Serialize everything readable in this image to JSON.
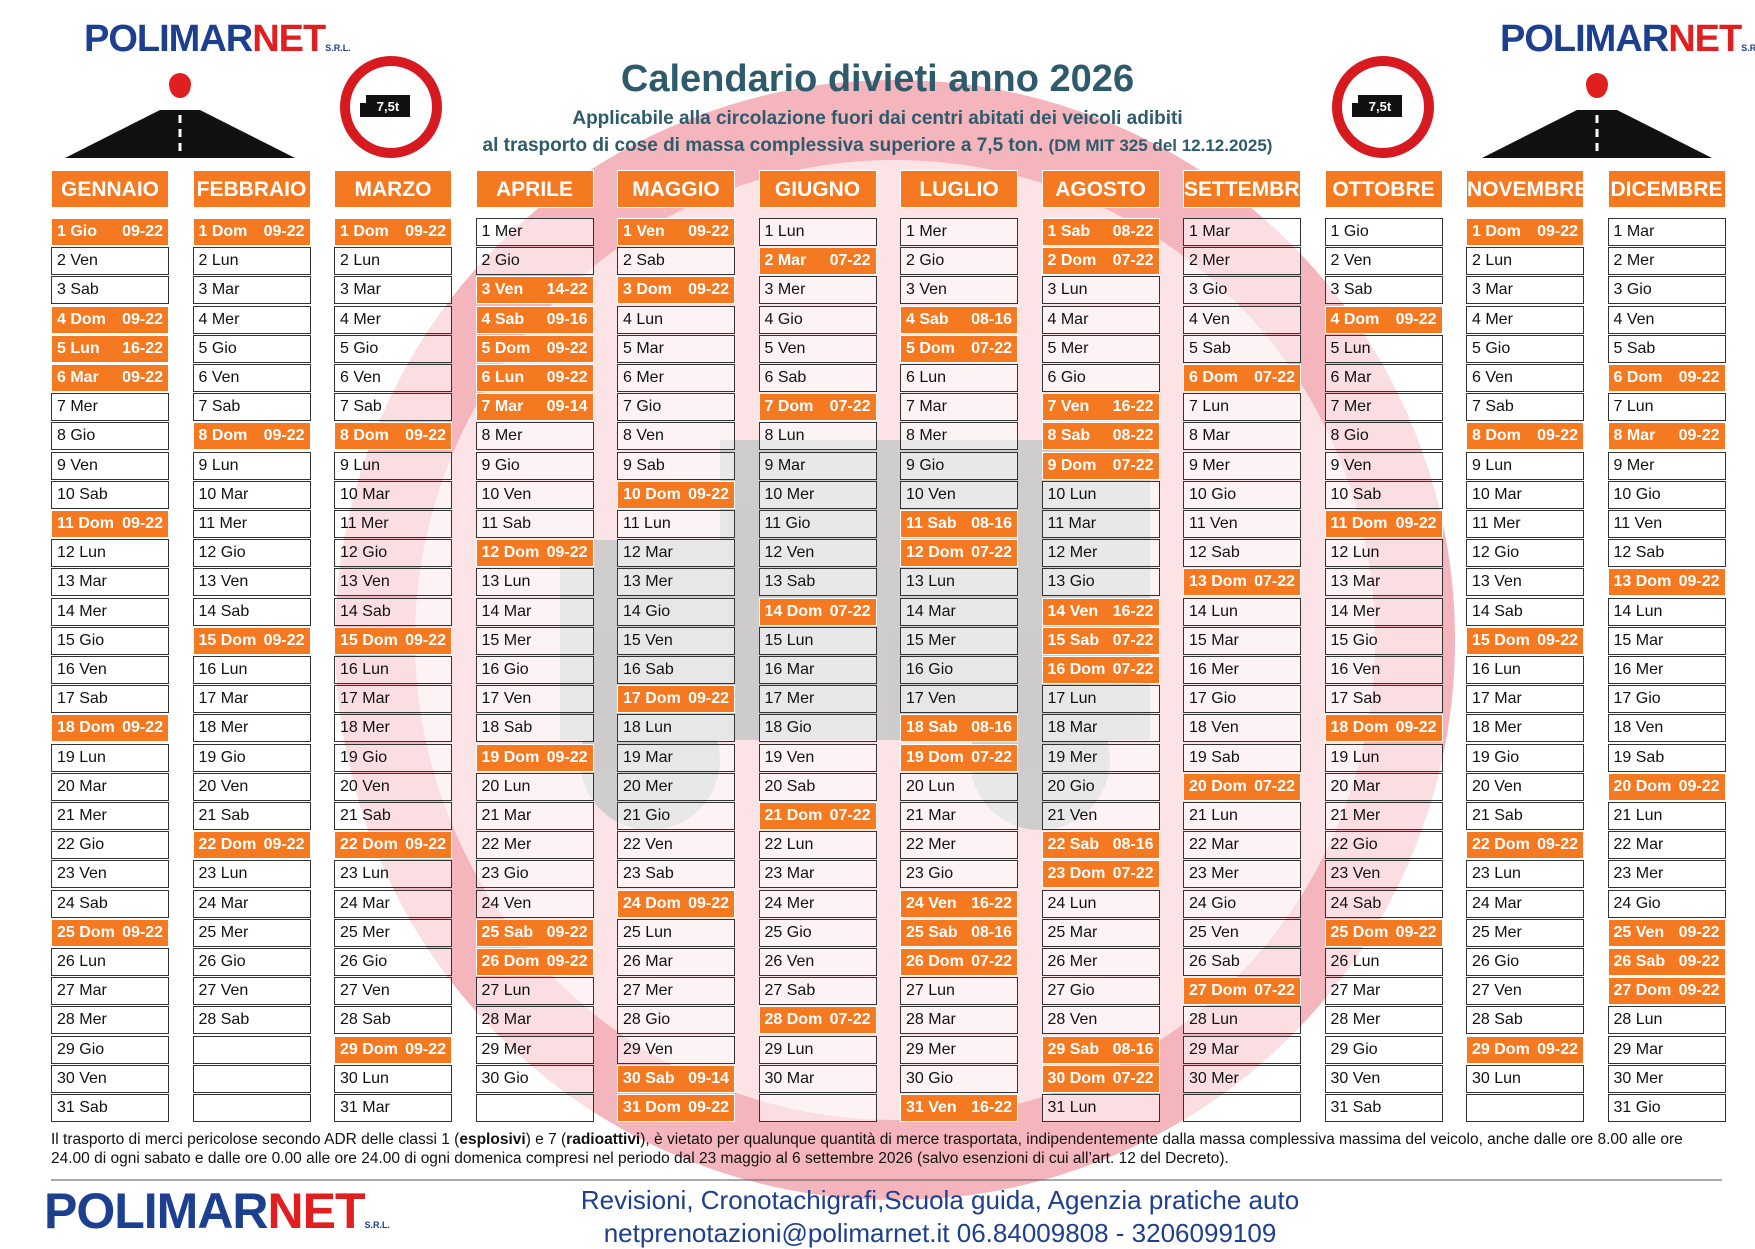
{
  "header": {
    "title": "Calendario divieti anno 2026",
    "subtitle_1": "Applicabile alla circolazione fuori dai centri abitati dei veicoli adibiti",
    "subtitle_2": "al trasporto di cose di massa complessiva superiore a 7,5 ton.",
    "subtitle_ref": "(DM MIT 325 del 12.12.2025)",
    "sign": "7,5t"
  },
  "logo": {
    "part_1": "POLIMAR",
    "part_2": "NET",
    "suffix": "S.R.L."
  },
  "months": [
    {
      "name": "GENNAIO",
      "days": [
        [
          "1 Gio",
          "09-22"
        ],
        [
          "2 Ven"
        ],
        [
          "3 Sab"
        ],
        [
          "4 Dom",
          "09-22"
        ],
        [
          "5 Lun",
          "16-22"
        ],
        [
          "6 Mar",
          "09-22"
        ],
        [
          "7 Mer"
        ],
        [
          "8 Gio"
        ],
        [
          "9 Ven"
        ],
        [
          "10 Sab"
        ],
        [
          "11 Dom",
          "09-22"
        ],
        [
          "12 Lun"
        ],
        [
          "13 Mar"
        ],
        [
          "14 Mer"
        ],
        [
          "15 Gio"
        ],
        [
          "16 Ven"
        ],
        [
          "17 Sab"
        ],
        [
          "18 Dom",
          "09-22"
        ],
        [
          "19 Lun"
        ],
        [
          "20 Mar"
        ],
        [
          "21 Mer"
        ],
        [
          "22 Gio"
        ],
        [
          "23 Ven"
        ],
        [
          "24 Sab"
        ],
        [
          "25 Dom",
          "09-22"
        ],
        [
          "26 Lun"
        ],
        [
          "27 Mar"
        ],
        [
          "28 Mer"
        ],
        [
          "29 Gio"
        ],
        [
          "30 Ven"
        ],
        [
          "31 Sab"
        ]
      ]
    },
    {
      "name": "FEBBRAIO",
      "days": [
        [
          "1 Dom",
          "09-22"
        ],
        [
          "2 Lun"
        ],
        [
          "3 Mar"
        ],
        [
          "4 Mer"
        ],
        [
          "5 Gio"
        ],
        [
          "6 Ven"
        ],
        [
          "7 Sab"
        ],
        [
          "8 Dom",
          "09-22"
        ],
        [
          "9 Lun"
        ],
        [
          "10 Mar"
        ],
        [
          "11 Mer"
        ],
        [
          "12 Gio"
        ],
        [
          "13 Ven"
        ],
        [
          "14 Sab"
        ],
        [
          "15 Dom",
          "09-22"
        ],
        [
          "16 Lun"
        ],
        [
          "17 Mar"
        ],
        [
          "18 Mer"
        ],
        [
          "19 Gio"
        ],
        [
          "20 Ven"
        ],
        [
          "21 Sab"
        ],
        [
          "22 Dom",
          "09-22"
        ],
        [
          "23 Lun"
        ],
        [
          "24 Mar"
        ],
        [
          "25 Mer"
        ],
        [
          "26 Gio"
        ],
        [
          "27 Ven"
        ],
        [
          "28 Sab"
        ]
      ]
    },
    {
      "name": "MARZO",
      "days": [
        [
          "1 Dom",
          "09-22"
        ],
        [
          "2 Lun"
        ],
        [
          "3 Mar"
        ],
        [
          "4 Mer"
        ],
        [
          "5 Gio"
        ],
        [
          "6 Ven"
        ],
        [
          "7 Sab"
        ],
        [
          "8 Dom",
          "09-22"
        ],
        [
          "9 Lun"
        ],
        [
          "10 Mar"
        ],
        [
          "11 Mer"
        ],
        [
          "12 Gio"
        ],
        [
          "13 Ven"
        ],
        [
          "14 Sab"
        ],
        [
          "15 Dom",
          "09-22"
        ],
        [
          "16 Lun"
        ],
        [
          "17 Mar"
        ],
        [
          "18 Mer"
        ],
        [
          "19 Gio"
        ],
        [
          "20 Ven"
        ],
        [
          "21 Sab"
        ],
        [
          "22 Dom",
          "09-22"
        ],
        [
          "23 Lun"
        ],
        [
          "24 Mar"
        ],
        [
          "25 Mer"
        ],
        [
          "26 Gio"
        ],
        [
          "27 Ven"
        ],
        [
          "28 Sab"
        ],
        [
          "29 Dom",
          "09-22"
        ],
        [
          "30 Lun"
        ],
        [
          "31 Mar"
        ]
      ]
    },
    {
      "name": "APRILE",
      "days": [
        [
          "1 Mer"
        ],
        [
          "2 Gio"
        ],
        [
          "3 Ven",
          "14-22"
        ],
        [
          "4 Sab",
          "09-16"
        ],
        [
          "5 Dom",
          "09-22"
        ],
        [
          "6 Lun",
          "09-22"
        ],
        [
          "7 Mar",
          "09-14"
        ],
        [
          "8 Mer"
        ],
        [
          "9 Gio"
        ],
        [
          "10 Ven"
        ],
        [
          "11 Sab"
        ],
        [
          "12 Dom",
          "09-22"
        ],
        [
          "13 Lun"
        ],
        [
          "14 Mar"
        ],
        [
          "15 Mer"
        ],
        [
          "16 Gio"
        ],
        [
          "17 Ven"
        ],
        [
          "18 Sab"
        ],
        [
          "19 Dom",
          "09-22"
        ],
        [
          "20 Lun"
        ],
        [
          "21 Mar"
        ],
        [
          "22 Mer"
        ],
        [
          "23 Gio"
        ],
        [
          "24 Ven"
        ],
        [
          "25 Sab",
          "09-22"
        ],
        [
          "26 Dom",
          "09-22"
        ],
        [
          "27 Lun"
        ],
        [
          "28 Mar"
        ],
        [
          "29 Mer"
        ],
        [
          "30 Gio"
        ]
      ]
    },
    {
      "name": "MAGGIO",
      "days": [
        [
          "1 Ven",
          "09-22"
        ],
        [
          "2 Sab"
        ],
        [
          "3 Dom",
          "09-22"
        ],
        [
          "4 Lun"
        ],
        [
          "5 Mar"
        ],
        [
          "6 Mer"
        ],
        [
          "7 Gio"
        ],
        [
          "8 Ven"
        ],
        [
          "9 Sab"
        ],
        [
          "10 Dom",
          "09-22"
        ],
        [
          "11 Lun"
        ],
        [
          "12 Mar"
        ],
        [
          "13 Mer"
        ],
        [
          "14 Gio"
        ],
        [
          "15 Ven"
        ],
        [
          "16 Sab"
        ],
        [
          "17 Dom",
          "09-22"
        ],
        [
          "18 Lun"
        ],
        [
          "19 Mar"
        ],
        [
          "20 Mer"
        ],
        [
          "21 Gio"
        ],
        [
          "22 Ven"
        ],
        [
          "23 Sab"
        ],
        [
          "24 Dom",
          "09-22"
        ],
        [
          "25 Lun"
        ],
        [
          "26 Mar"
        ],
        [
          "27 Mer"
        ],
        [
          "28 Gio"
        ],
        [
          "29 Ven"
        ],
        [
          "30 Sab",
          "09-14"
        ],
        [
          "31 Dom",
          "09-22"
        ]
      ]
    },
    {
      "name": "GIUGNO",
      "days": [
        [
          "1 Lun"
        ],
        [
          "2 Mar",
          "07-22"
        ],
        [
          "3 Mer"
        ],
        [
          "4 Gio"
        ],
        [
          "5 Ven"
        ],
        [
          "6 Sab"
        ],
        [
          "7 Dom",
          "07-22"
        ],
        [
          "8 Lun"
        ],
        [
          "9 Mar"
        ],
        [
          "10 Mer"
        ],
        [
          "11 Gio"
        ],
        [
          "12 Ven"
        ],
        [
          "13 Sab"
        ],
        [
          "14 Dom",
          "07-22"
        ],
        [
          "15 Lun"
        ],
        [
          "16 Mar"
        ],
        [
          "17 Mer"
        ],
        [
          "18 Gio"
        ],
        [
          "19 Ven"
        ],
        [
          "20 Sab"
        ],
        [
          "21 Dom",
          "07-22"
        ],
        [
          "22 Lun"
        ],
        [
          "23 Mar"
        ],
        [
          "24 Mer"
        ],
        [
          "25 Gio"
        ],
        [
          "26 Ven"
        ],
        [
          "27 Sab"
        ],
        [
          "28 Dom",
          "07-22"
        ],
        [
          "29 Lun"
        ],
        [
          "30 Mar"
        ]
      ]
    },
    {
      "name": "LUGLIO",
      "days": [
        [
          "1 Mer"
        ],
        [
          "2 Gio"
        ],
        [
          "3 Ven"
        ],
        [
          "4 Sab",
          "08-16"
        ],
        [
          "5 Dom",
          "07-22"
        ],
        [
          "6 Lun"
        ],
        [
          "7 Mar"
        ],
        [
          "8 Mer"
        ],
        [
          "9 Gio"
        ],
        [
          "10 Ven"
        ],
        [
          "11 Sab",
          "08-16"
        ],
        [
          "12 Dom",
          "07-22"
        ],
        [
          "13 Lun"
        ],
        [
          "14 Mar"
        ],
        [
          "15 Mer"
        ],
        [
          "16 Gio"
        ],
        [
          "17 Ven"
        ],
        [
          "18 Sab",
          "08-16"
        ],
        [
          "19 Dom",
          "07-22"
        ],
        [
          "20 Lun"
        ],
        [
          "21 Mar"
        ],
        [
          "22 Mer"
        ],
        [
          "23 Gio"
        ],
        [
          "24 Ven",
          "16-22"
        ],
        [
          "25 Sab",
          "08-16"
        ],
        [
          "26 Dom",
          "07-22"
        ],
        [
          "27 Lun"
        ],
        [
          "28 Mar"
        ],
        [
          "29 Mer"
        ],
        [
          "30 Gio"
        ],
        [
          "31 Ven",
          "16-22"
        ]
      ]
    },
    {
      "name": "AGOSTO",
      "days": [
        [
          "1 Sab",
          "08-22"
        ],
        [
          "2 Dom",
          "07-22"
        ],
        [
          "3 Lun"
        ],
        [
          "4 Mar"
        ],
        [
          "5 Mer"
        ],
        [
          "6 Gio"
        ],
        [
          "7 Ven",
          "16-22"
        ],
        [
          "8 Sab",
          "08-22"
        ],
        [
          "9 Dom",
          "07-22"
        ],
        [
          "10 Lun"
        ],
        [
          "11 Mar"
        ],
        [
          "12 Mer"
        ],
        [
          "13 Gio"
        ],
        [
          "14 Ven",
          "16-22"
        ],
        [
          "15 Sab",
          "07-22"
        ],
        [
          "16 Dom",
          "07-22"
        ],
        [
          "17 Lun"
        ],
        [
          "18 Mar"
        ],
        [
          "19 Mer"
        ],
        [
          "20 Gio"
        ],
        [
          "21 Ven"
        ],
        [
          "22 Sab",
          "08-16"
        ],
        [
          "23 Dom",
          "07-22"
        ],
        [
          "24 Lun"
        ],
        [
          "25 Mar"
        ],
        [
          "26 Mer"
        ],
        [
          "27 Gio"
        ],
        [
          "28 Ven"
        ],
        [
          "29 Sab",
          "08-16"
        ],
        [
          "30 Dom",
          "07-22"
        ],
        [
          "31 Lun"
        ]
      ]
    },
    {
      "name": "SETTEMBRE",
      "days": [
        [
          "1 Mar"
        ],
        [
          "2 Mer"
        ],
        [
          "3 Gio"
        ],
        [
          "4 Ven"
        ],
        [
          "5 Sab"
        ],
        [
          "6 Dom",
          "07-22"
        ],
        [
          "7 Lun"
        ],
        [
          "8 Mar"
        ],
        [
          "9 Mer"
        ],
        [
          "10 Gio"
        ],
        [
          "11 Ven"
        ],
        [
          "12 Sab"
        ],
        [
          "13 Dom",
          "07-22"
        ],
        [
          "14 Lun"
        ],
        [
          "15 Mar"
        ],
        [
          "16 Mer"
        ],
        [
          "17 Gio"
        ],
        [
          "18 Ven"
        ],
        [
          "19 Sab"
        ],
        [
          "20 Dom",
          "07-22"
        ],
        [
          "21 Lun"
        ],
        [
          "22 Mar"
        ],
        [
          "23 Mer"
        ],
        [
          "24 Gio"
        ],
        [
          "25 Ven"
        ],
        [
          "26 Sab"
        ],
        [
          "27 Dom",
          "07-22"
        ],
        [
          "28 Lun"
        ],
        [
          "29 Mar"
        ],
        [
          "30 Mer"
        ]
      ]
    },
    {
      "name": "OTTOBRE",
      "days": [
        [
          "1 Gio"
        ],
        [
          "2 Ven"
        ],
        [
          "3 Sab"
        ],
        [
          "4 Dom",
          "09-22"
        ],
        [
          "5 Lun"
        ],
        [
          "6 Mar"
        ],
        [
          "7 Mer"
        ],
        [
          "8 Gio"
        ],
        [
          "9 Ven"
        ],
        [
          "10 Sab"
        ],
        [
          "11 Dom",
          "09-22"
        ],
        [
          "12 Lun"
        ],
        [
          "13 Mar"
        ],
        [
          "14 Mer"
        ],
        [
          "15 Gio"
        ],
        [
          "16 Ven"
        ],
        [
          "17 Sab"
        ],
        [
          "18 Dom",
          "09-22"
        ],
        [
          "19 Lun"
        ],
        [
          "20 Mar"
        ],
        [
          "21 Mer"
        ],
        [
          "22 Gio"
        ],
        [
          "23 Ven"
        ],
        [
          "24 Sab"
        ],
        [
          "25 Dom",
          "09-22"
        ],
        [
          "26 Lun"
        ],
        [
          "27 Mar"
        ],
        [
          "28 Mer"
        ],
        [
          "29 Gio"
        ],
        [
          "30 Ven"
        ],
        [
          "31 Sab"
        ]
      ]
    },
    {
      "name": "NOVEMBRE",
      "days": [
        [
          "1 Dom",
          "09-22"
        ],
        [
          "2 Lun"
        ],
        [
          "3 Mar"
        ],
        [
          "4 Mer"
        ],
        [
          "5 Gio"
        ],
        [
          "6 Ven"
        ],
        [
          "7 Sab"
        ],
        [
          "8 Dom",
          "09-22"
        ],
        [
          "9 Lun"
        ],
        [
          "10 Mar"
        ],
        [
          "11 Mer"
        ],
        [
          "12 Gio"
        ],
        [
          "13 Ven"
        ],
        [
          "14 Sab"
        ],
        [
          "15 Dom",
          "09-22"
        ],
        [
          "16 Lun"
        ],
        [
          "17 Mar"
        ],
        [
          "18 Mer"
        ],
        [
          "19 Gio"
        ],
        [
          "20 Ven"
        ],
        [
          "21 Sab"
        ],
        [
          "22 Dom",
          "09-22"
        ],
        [
          "23 Lun"
        ],
        [
          "24 Mar"
        ],
        [
          "25 Mer"
        ],
        [
          "26 Gio"
        ],
        [
          "27 Ven"
        ],
        [
          "28 Sab"
        ],
        [
          "29 Dom",
          "09-22"
        ],
        [
          "30 Lun"
        ]
      ]
    },
    {
      "name": "DICEMBRE",
      "days": [
        [
          "1 Mar"
        ],
        [
          "2 Mer"
        ],
        [
          "3 Gio"
        ],
        [
          "4 Ven"
        ],
        [
          "5 Sab"
        ],
        [
          "6 Dom",
          "09-22"
        ],
        [
          "7 Lun"
        ],
        [
          "8 Mar",
          "09-22"
        ],
        [
          "9 Mer"
        ],
        [
          "10 Gio"
        ],
        [
          "11 Ven"
        ],
        [
          "12 Sab"
        ],
        [
          "13 Dom",
          "09-22"
        ],
        [
          "14 Lun"
        ],
        [
          "15 Mar"
        ],
        [
          "16 Mer"
        ],
        [
          "17 Gio"
        ],
        [
          "18 Ven"
        ],
        [
          "19 Sab"
        ],
        [
          "20 Dom",
          "09-22"
        ],
        [
          "21 Lun"
        ],
        [
          "22 Mar"
        ],
        [
          "23 Mer"
        ],
        [
          "24 Gio"
        ],
        [
          "25 Ven",
          "09-22"
        ],
        [
          "26 Sab",
          "09-22"
        ],
        [
          "27 Dom",
          "09-22"
        ],
        [
          "28 Lun"
        ],
        [
          "29 Mar"
        ],
        [
          "30 Mer"
        ],
        [
          "31 Gio"
        ]
      ]
    }
  ],
  "footnote": [
    "Il trasporto di merci pericolose secondo ADR delle classi 1 (",
    "esplosivi",
    ") e 7 (",
    "radioattivi",
    "), è vietato per qualunque quantità di merce trasportata, indipendentemente dalla massa complessiva massima del veicolo, anche dalle ore 8.00 alle ore 24.00 di ogni sabato e dalle ore 0.00 alle ore 24.00 di ogni domenica compresi nel periodo dal 23 maggio al 6 settembre 2026 (salvo esenzioni di cui all’art. 12 del Decreto)."
  ],
  "contact": {
    "services": "Revisioni, Cronotachigrafi,Scuola guida, Agenzia pratiche auto",
    "line": "netprenotazioni@polimarnet.it 06.84009808 - 3206099109"
  }
}
